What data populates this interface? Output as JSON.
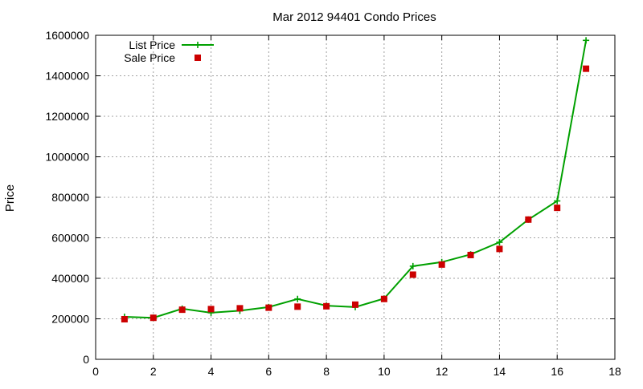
{
  "chart_data": {
    "type": "line",
    "title": "Mar 2012 94401 Condo Prices",
    "xlabel": "",
    "ylabel": "Price",
    "xlim": [
      0,
      18
    ],
    "ylim": [
      0,
      1600000
    ],
    "xticks": [
      0,
      2,
      4,
      6,
      8,
      10,
      12,
      14,
      16,
      18
    ],
    "yticks": [
      0,
      200000,
      400000,
      600000,
      800000,
      1000000,
      1200000,
      1400000,
      1600000
    ],
    "grid": true,
    "legend_position": "top-left",
    "series": [
      {
        "name": "List Price",
        "style": "line-plus",
        "color": "#00a000",
        "x": [
          1,
          2,
          3,
          4,
          5,
          6,
          7,
          8,
          9,
          10,
          11,
          12,
          13,
          14,
          15,
          16,
          17
        ],
        "y": [
          210000,
          205000,
          250000,
          230000,
          240000,
          258000,
          298000,
          265000,
          258000,
          300000,
          460000,
          480000,
          518000,
          578000,
          690000,
          782000,
          1575000
        ]
      },
      {
        "name": "Sale Price",
        "style": "square-points",
        "color": "#cc0000",
        "x": [
          1,
          2,
          3,
          4,
          5,
          6,
          7,
          8,
          9,
          10,
          11,
          12,
          13,
          14,
          15,
          16,
          17
        ],
        "y": [
          198000,
          205000,
          245000,
          248000,
          252000,
          255000,
          260000,
          262000,
          270000,
          298000,
          418000,
          468000,
          515000,
          545000,
          690000,
          748000,
          1435000
        ]
      }
    ]
  }
}
